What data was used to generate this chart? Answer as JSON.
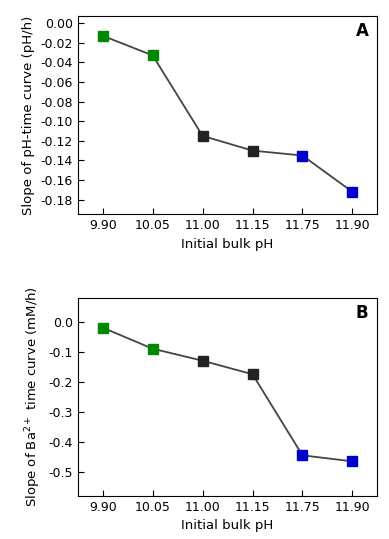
{
  "panel_A": {
    "x_positions": [
      0,
      1,
      2,
      3,
      4,
      5
    ],
    "x_labels": [
      "9.90",
      "10.05",
      "11.00",
      "11.15",
      "11.75",
      "11.90"
    ],
    "y": [
      -0.013,
      -0.033,
      -0.115,
      -0.13,
      -0.135,
      -0.172
    ],
    "colors": [
      "#008800",
      "#008800",
      "#222222",
      "#222222",
      "#0000cc",
      "#0000cc"
    ],
    "ylabel": "Slope of pH-time curve (pH/h)",
    "xlabel": "Initial bulk pH",
    "label": "A",
    "ylim": [
      -0.195,
      0.007
    ],
    "yticks": [
      0.0,
      -0.02,
      -0.04,
      -0.06,
      -0.08,
      -0.1,
      -0.12,
      -0.14,
      -0.16,
      -0.18
    ],
    "ytick_labels": [
      "0.00",
      "-0.02",
      "-0.04",
      "-0.06",
      "-0.08",
      "-0.10",
      "-0.12",
      "-0.14",
      "-0.16",
      "-0.18"
    ]
  },
  "panel_B": {
    "x_positions": [
      0,
      1,
      2,
      3,
      4,
      5
    ],
    "x_labels": [
      "9.90",
      "10.05",
      "11.00",
      "11.15",
      "11.75",
      "11.90"
    ],
    "y": [
      -0.02,
      -0.09,
      -0.13,
      -0.175,
      -0.445,
      -0.465
    ],
    "colors": [
      "#008800",
      "#008800",
      "#222222",
      "#222222",
      "#0000cc",
      "#0000cc"
    ],
    "ylabel": "Slope of Ba$^{2+}$ time curve (mM/h)",
    "xlabel": "Initial bulk pH",
    "label": "B",
    "ylim": [
      -0.58,
      0.08
    ],
    "yticks": [
      0.0,
      -0.1,
      -0.2,
      -0.3,
      -0.4,
      -0.5
    ],
    "ytick_labels": [
      "0.0",
      "-0.1",
      "-0.2",
      "-0.3",
      "-0.4",
      "-0.5"
    ]
  },
  "line_color": "#444444",
  "marker": "s",
  "markersize": 7,
  "linewidth": 1.3,
  "background_color": "#ffffff",
  "tick_labelsize": 9,
  "axis_labelsize": 9.5,
  "label_fontsize": 12
}
